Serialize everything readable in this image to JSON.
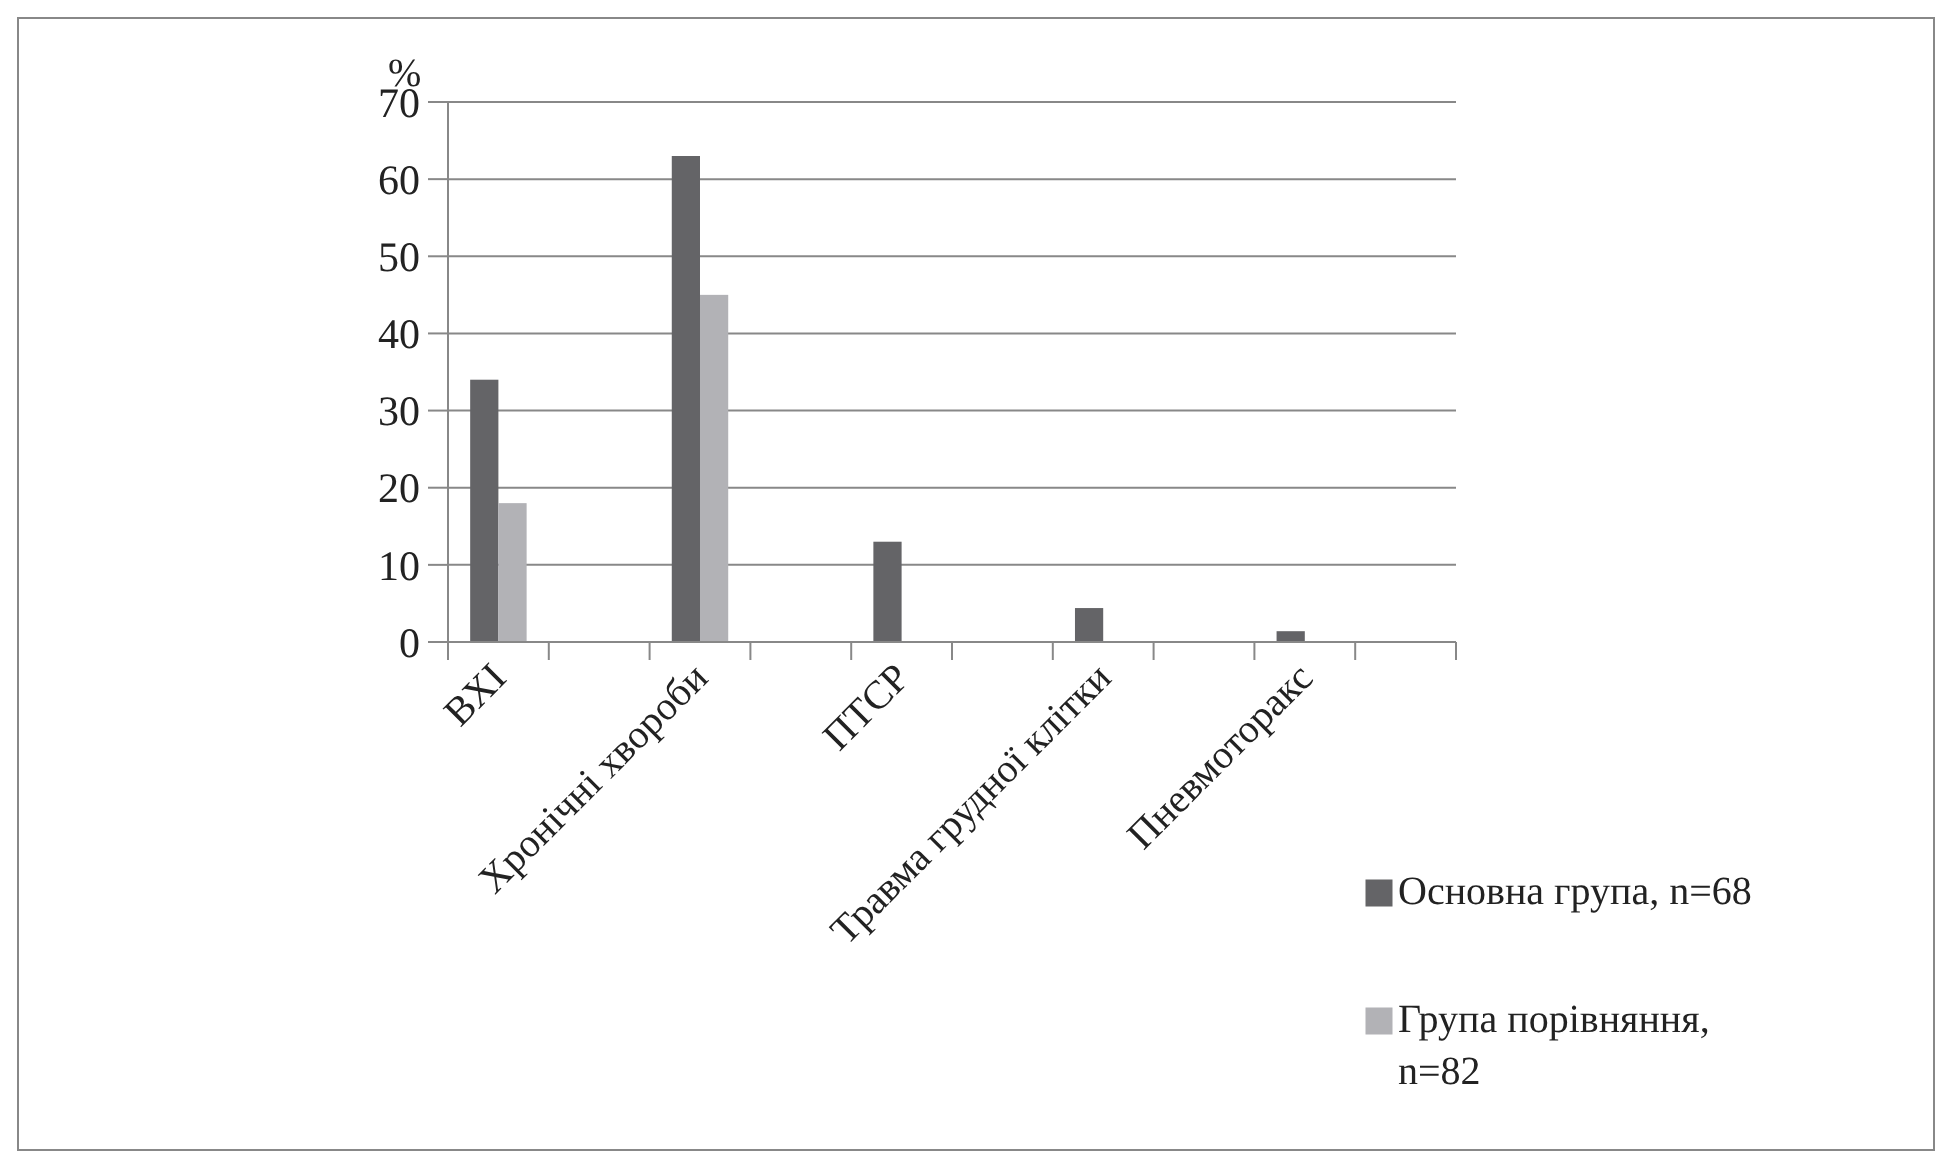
{
  "chart_data": {
    "type": "bar",
    "ylabel": "%",
    "categories": [
      "ВХІ",
      null,
      "Хронічні хвороби",
      null,
      "ПТСР",
      null,
      "Травма грудної клітки",
      null,
      "Пневмоторакс",
      null
    ],
    "series": [
      {
        "name": "Основна група, n=68",
        "color": "#646467",
        "values": [
          34,
          null,
          63,
          null,
          13,
          null,
          4.4,
          null,
          1.4,
          null
        ]
      },
      {
        "name": "Група порівняння, n=82",
        "color": "#b2b2b6",
        "values": [
          18,
          null,
          45,
          null,
          null,
          null,
          null,
          null,
          null,
          null
        ]
      }
    ],
    "ylim": [
      0,
      70
    ],
    "yticks": [
      0,
      10,
      20,
      30,
      40,
      50,
      60,
      70
    ],
    "grid": "y",
    "legend": "bottom right"
  }
}
